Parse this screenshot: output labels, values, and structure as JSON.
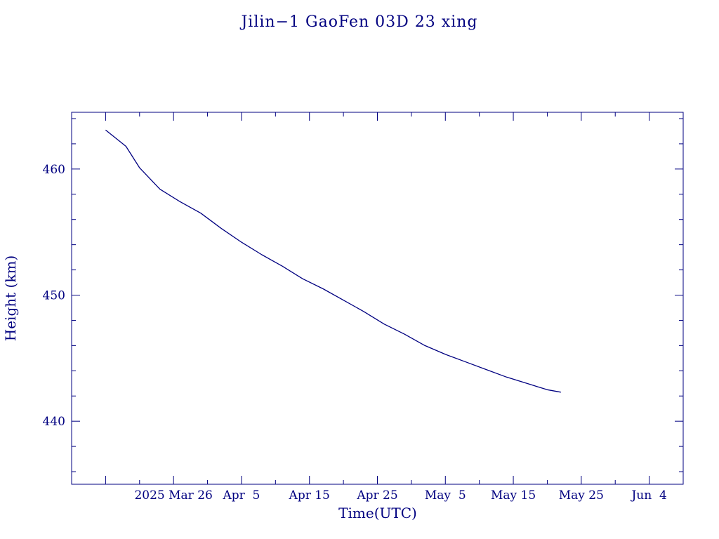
{
  "chart_data": {
    "type": "line",
    "title": "Jilin−1 GaoFen 03D 23 xing",
    "xlabel": "Time(UTC)",
    "ylabel": "Height (km)",
    "xlim": [
      "2025-03-11",
      "2025-06-09"
    ],
    "ylim": [
      435,
      464.5
    ],
    "x_ticks": [
      {
        "date": "2025-03-26",
        "label": "2025 Mar 26"
      },
      {
        "date": "2025-04-05",
        "label": "Apr  5"
      },
      {
        "date": "2025-04-15",
        "label": "Apr 15"
      },
      {
        "date": "2025-04-25",
        "label": "Apr 25"
      },
      {
        "date": "2025-05-05",
        "label": "May  5"
      },
      {
        "date": "2025-05-15",
        "label": "May 15"
      },
      {
        "date": "2025-05-25",
        "label": "May 25"
      },
      {
        "date": "2025-06-04",
        "label": "Jun  4"
      }
    ],
    "y_ticks": [
      440,
      450,
      460
    ],
    "grid": false,
    "color": "#000080",
    "series": [
      {
        "x": [
          "2025-03-16",
          "2025-03-19",
          "2025-03-21",
          "2025-03-24",
          "2025-03-27",
          "2025-03-30",
          "2025-04-02",
          "2025-04-05",
          "2025-04-08",
          "2025-04-11",
          "2025-04-14",
          "2025-04-17",
          "2025-04-20",
          "2025-04-23",
          "2025-04-26",
          "2025-04-29",
          "2025-05-02",
          "2025-05-05",
          "2025-05-08",
          "2025-05-11",
          "2025-05-14",
          "2025-05-17",
          "2025-05-20",
          "2025-05-22"
        ],
        "y": [
          463.1,
          461.8,
          460.1,
          458.4,
          457.4,
          456.5,
          455.3,
          454.2,
          453.2,
          452.3,
          451.3,
          450.5,
          449.6,
          448.7,
          447.7,
          446.9,
          446.0,
          445.3,
          444.7,
          444.1,
          443.5,
          443.0,
          442.5,
          442.3
        ]
      }
    ]
  }
}
